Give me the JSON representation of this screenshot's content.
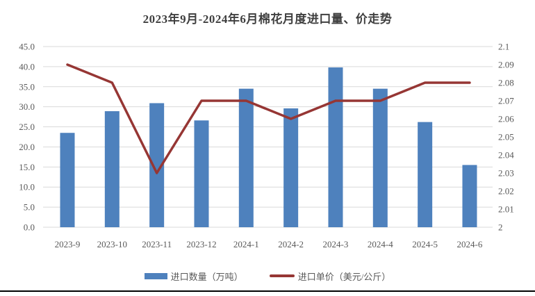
{
  "title": "2023年9月-2024年6月棉花月度进口量、价走势",
  "legend": {
    "bars": "进口数量（万吨）",
    "line": "进口单价（美元/公斤）"
  },
  "colors": {
    "bar": "#4e81bd",
    "line": "#963634",
    "grid": "#d9d9d9",
    "axis_text": "#595959",
    "title_text": "#3f3f3f",
    "bottom_rule": "#000000",
    "background": "#ffffff"
  },
  "chart_data": {
    "type": "bar",
    "subtype": "bar+line dual axis",
    "title": "2023年9月-2024年6月棉花月度进口量、价走势",
    "categories": [
      "2023-9",
      "2023-10",
      "2023-11",
      "2023-12",
      "2024-1",
      "2024-2",
      "2024-3",
      "2024-4",
      "2024-5",
      "2024-6"
    ],
    "series": [
      {
        "name": "进口数量（万吨）",
        "type": "bar",
        "axis": "left",
        "values": [
          23.5,
          28.9,
          30.9,
          26.6,
          34.5,
          29.6,
          39.8,
          34.5,
          26.2,
          15.5
        ]
      },
      {
        "name": "进口单价（美元/公斤）",
        "type": "line",
        "axis": "right",
        "values": [
          2.09,
          2.08,
          2.03,
          2.07,
          2.07,
          2.06,
          2.07,
          2.07,
          2.08,
          2.08
        ]
      }
    ],
    "left_axis": {
      "min": 0,
      "max": 45,
      "step": 5,
      "tick_labels": [
        "0.0",
        "5.0",
        "10.0",
        "15.0",
        "20.0",
        "25.0",
        "30.0",
        "35.0",
        "40.0",
        "45.0"
      ]
    },
    "right_axis": {
      "min": 2,
      "max": 2.1,
      "step": 0.01,
      "tick_labels": [
        "2",
        "2.01",
        "2.02",
        "2.03",
        "2.04",
        "2.05",
        "2.06",
        "2.07",
        "2.08",
        "2.09",
        "2.1"
      ]
    },
    "xlabel": "",
    "ylabel_left": "进口数量（万吨）",
    "ylabel_right": "进口单价（美元/公斤）",
    "grid": "horizontal only",
    "legend_position": "bottom"
  }
}
